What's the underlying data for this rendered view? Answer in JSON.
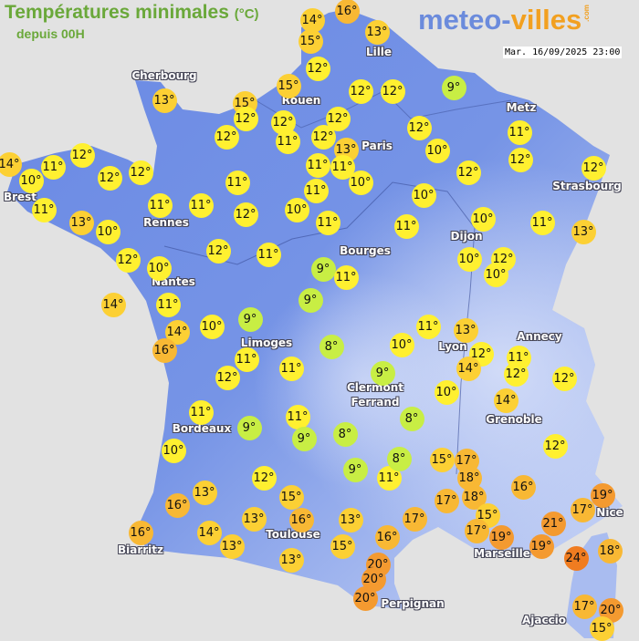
{
  "header": {
    "title": "Températures minimales",
    "unit": "(°C)",
    "subtitle": "depuis 00H",
    "logo": {
      "part1": "meteo-",
      "part2": "villes",
      "suffix": ".com"
    },
    "datetime": "Mar. 16/09/2025 23:00"
  },
  "colors": {
    "title_green": "#6aa83a",
    "logo_blue": "#6b8bdc",
    "logo_orange": "#f2a020",
    "land": "#6f8fe6",
    "sea": "#e2e2e2",
    "temp_8_9": "#c8ee44",
    "temp_10_12": "#fff030",
    "temp_13_15": "#fcd034",
    "temp_16_18": "#f8b834",
    "temp_19_21": "#f49a30",
    "temp_24": "#f07c20"
  },
  "cities": [
    "Cherbourg",
    "Lille",
    "Rouen",
    "Paris",
    "Metz",
    "Strasbourg",
    "Brest",
    "Rennes",
    "Nantes",
    "Bourges",
    "Dijon",
    "Limoges",
    "Lyon",
    "Annecy",
    "Clermont",
    "Ferrand",
    "Bordeaux",
    "Grenoble",
    "Nice",
    "Biarritz",
    "Toulouse",
    "Marseille",
    "Perpignan",
    "Ajaccio"
  ],
  "temperatures": [
    14,
    16,
    13,
    15,
    12,
    15,
    15,
    12,
    12,
    12,
    9,
    13,
    12,
    12,
    12,
    11,
    12,
    13,
    12,
    11,
    10,
    12,
    14,
    10,
    11,
    12,
    12,
    12,
    12,
    11,
    11,
    10,
    12,
    11,
    13,
    10,
    11,
    11,
    11,
    12,
    10,
    11,
    11,
    11,
    10,
    10,
    11,
    13,
    12,
    10,
    12,
    11,
    9,
    11,
    10,
    12,
    10,
    14,
    11,
    9,
    14,
    10,
    9,
    16,
    8,
    10,
    11,
    13,
    12,
    14,
    11,
    12,
    12,
    12,
    11,
    11,
    9,
    10,
    14,
    11,
    9,
    11,
    9,
    8,
    8,
    10,
    12,
    12,
    9,
    11,
    8,
    15,
    17,
    18,
    13,
    16,
    15,
    18,
    17,
    16,
    19,
    17,
    21,
    16,
    14,
    13,
    16,
    13,
    17,
    16,
    15,
    17,
    19,
    15,
    19,
    13,
    18,
    24,
    20,
    20,
    20,
    13,
    17,
    20,
    15
  ],
  "degree_suffix": "°"
}
